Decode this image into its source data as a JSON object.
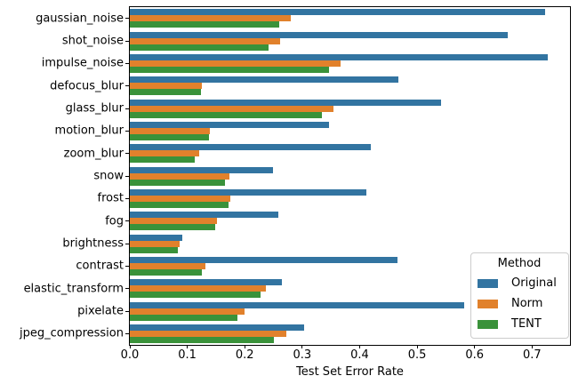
{
  "chart_data": {
    "type": "bar",
    "orientation": "horizontal",
    "title": "",
    "xlabel": "Test Set Error Rate",
    "ylabel": "",
    "categories": [
      "gaussian_noise",
      "shot_noise",
      "impulse_noise",
      "defocus_blur",
      "glass_blur",
      "motion_blur",
      "zoom_blur",
      "snow",
      "frost",
      "fog",
      "brightness",
      "contrast",
      "elastic_transform",
      "pixelate",
      "jpeg_compression"
    ],
    "series": [
      {
        "name": "Original",
        "color": "#3274a1",
        "values": [
          0.723,
          0.657,
          0.728,
          0.468,
          0.542,
          0.347,
          0.42,
          0.249,
          0.412,
          0.258,
          0.091,
          0.466,
          0.264,
          0.582,
          0.303
        ]
      },
      {
        "name": "Norm",
        "color": "#e1812c",
        "values": [
          0.28,
          0.261,
          0.366,
          0.126,
          0.355,
          0.14,
          0.121,
          0.173,
          0.175,
          0.151,
          0.086,
          0.132,
          0.237,
          0.199,
          0.273
        ]
      },
      {
        "name": "TENT",
        "color": "#3a923a",
        "values": [
          0.26,
          0.242,
          0.346,
          0.124,
          0.334,
          0.137,
          0.113,
          0.166,
          0.171,
          0.148,
          0.083,
          0.125,
          0.227,
          0.187,
          0.251
        ]
      }
    ],
    "xlim": [
      0,
      0.766
    ],
    "x_ticks": [
      0.0,
      0.1,
      0.2,
      0.3,
      0.4,
      0.5,
      0.6,
      0.7
    ],
    "x_tick_labels": [
      "0.0",
      "0.1",
      "0.2",
      "0.3",
      "0.4",
      "0.5",
      "0.6",
      "0.7"
    ],
    "grid": false,
    "legend": {
      "title": "Method",
      "position": "lower right"
    }
  }
}
